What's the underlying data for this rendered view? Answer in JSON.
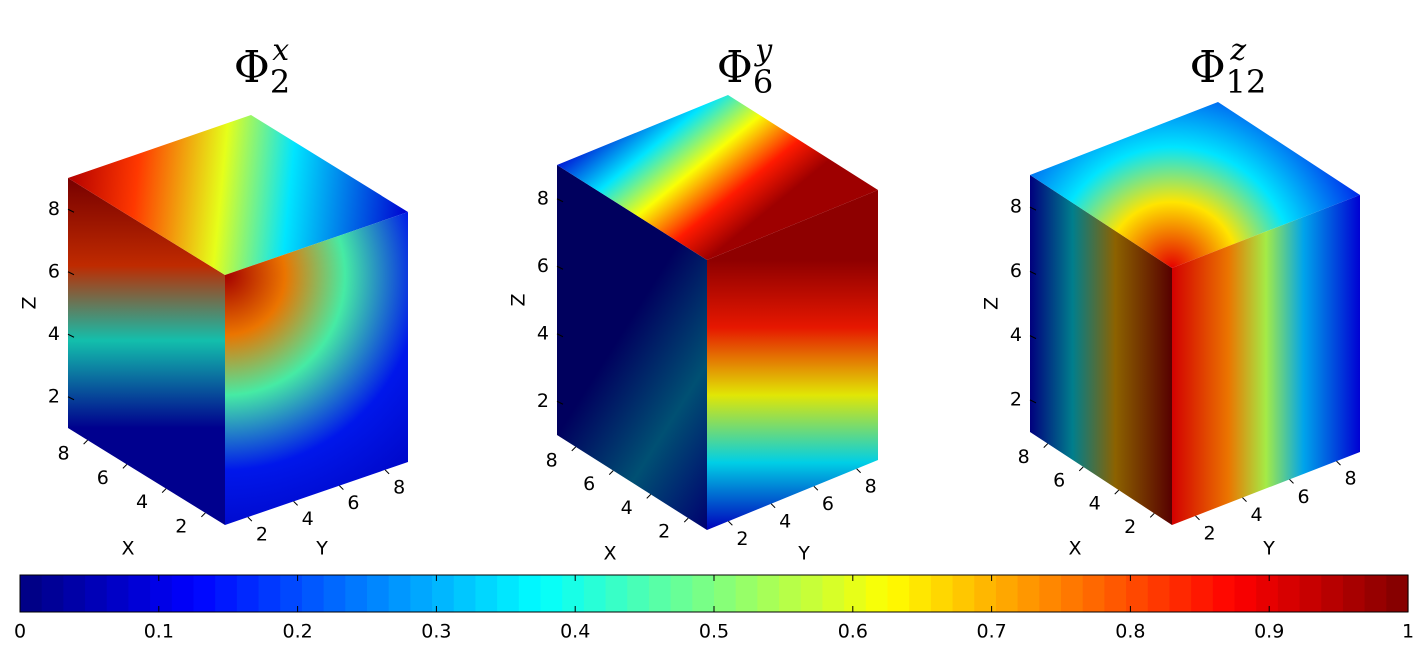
{
  "panels": [
    {
      "title": {
        "symbol": "Φ",
        "sub": "2",
        "sup": "x"
      },
      "xlabel": "X",
      "ylabel": "Y",
      "zlabel": "Z",
      "xlim": [
        1,
        9
      ],
      "ylim": [
        1,
        9
      ],
      "zlim": [
        1,
        9
      ],
      "xticks": [
        2,
        4,
        6,
        8
      ],
      "yticks": [
        2,
        4,
        6,
        8
      ],
      "zticks": [
        2,
        4,
        6,
        8
      ]
    },
    {
      "title": {
        "symbol": "Φ",
        "sub": "6",
        "sup": "y"
      },
      "xlabel": "X",
      "ylabel": "Y",
      "zlabel": "Z",
      "xlim": [
        1,
        9
      ],
      "ylim": [
        1,
        9
      ],
      "zlim": [
        1,
        9
      ],
      "xticks": [
        2,
        4,
        6,
        8
      ],
      "yticks": [
        2,
        4,
        6,
        8
      ],
      "zticks": [
        2,
        4,
        6,
        8
      ]
    },
    {
      "title": {
        "symbol": "Φ",
        "sub": "12",
        "sup": "z"
      },
      "xlabel": "X",
      "ylabel": "Y",
      "zlabel": "Z",
      "xlim": [
        1,
        9
      ],
      "ylim": [
        1,
        9
      ],
      "zlim": [
        1,
        9
      ],
      "xticks": [
        2,
        4,
        6,
        8
      ],
      "yticks": [
        2,
        4,
        6,
        8
      ],
      "zticks": [
        2,
        4,
        6,
        8
      ]
    }
  ],
  "colorbar": {
    "colormap": "jet",
    "lim": [
      0,
      1
    ],
    "ticks": [
      0,
      0.1,
      0.2,
      0.3,
      0.4,
      0.5,
      0.6,
      0.7,
      0.8,
      0.9,
      1
    ]
  }
}
